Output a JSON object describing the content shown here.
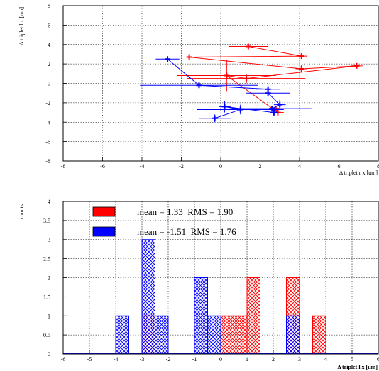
{
  "colors": {
    "red": "#ff0000",
    "blue": "#0000ff",
    "grid": "#000000",
    "frame": "#000000"
  },
  "chart_data": [
    {
      "type": "scatter",
      "title": "",
      "xlabel": "Δ triplet r x [um]",
      "ylabel": "Δ triplet l x [um]",
      "xlim": [
        -8,
        8
      ],
      "ylim": [
        -8,
        8
      ],
      "x_ticks": [
        "-8",
        "-6",
        "-4",
        "-2",
        "0",
        "2",
        "4",
        "6",
        "8"
      ],
      "y_ticks": [
        "-8",
        "-6",
        "-4",
        "-2",
        "0",
        "2",
        "4",
        "6",
        "8"
      ],
      "grid": true,
      "legend": "none",
      "series": [
        {
          "color": "#ff0000",
          "style": "points-with-errorbars-connected",
          "points": [
            {
              "x": 1.4,
              "y": 3.8,
              "xerr": 1.0,
              "yerr": 0.2
            },
            {
              "x": 4.1,
              "y": 2.8,
              "xerr": 0.3,
              "yerr": 0.2
            },
            {
              "x": -1.6,
              "y": 2.7,
              "xerr": 0.3,
              "yerr": 0.2
            },
            {
              "x": 4.1,
              "y": 1.5,
              "xerr": 0.3,
              "yerr": 0.4
            },
            {
              "x": 6.9,
              "y": 1.8,
              "xerr": 0.3,
              "yerr": 0.2
            },
            {
              "x": 1.3,
              "y": 0.5,
              "xerr": 3.0,
              "yerr": 0.5
            },
            {
              "x": 0.3,
              "y": 0.8,
              "xerr": 2.5,
              "yerr": 1.6
            },
            {
              "x": 2.9,
              "y": -3.0,
              "xerr": 0.3,
              "yerr": 0.3
            },
            {
              "x": 2.8,
              "y": -2.6,
              "xerr": 0.2,
              "yerr": 0.3
            }
          ]
        },
        {
          "color": "#0000ff",
          "style": "points-with-errorbars-connected",
          "points": [
            {
              "x": -2.7,
              "y": 2.5,
              "xerr": 0.6,
              "yerr": 0.2
            },
            {
              "x": -1.1,
              "y": -0.2,
              "xerr": 3.0,
              "yerr": 0.2
            },
            {
              "x": 2.4,
              "y": -0.6,
              "xerr": 0.6,
              "yerr": 0.4
            },
            {
              "x": 2.4,
              "y": -1.0,
              "xerr": 1.1,
              "yerr": 0.4
            },
            {
              "x": 3.0,
              "y": -2.2,
              "xerr": 0.3,
              "yerr": 0.5
            },
            {
              "x": 2.6,
              "y": -2.6,
              "xerr": 2.0,
              "yerr": 0.3
            },
            {
              "x": 2.7,
              "y": -3.0,
              "xerr": 0.2,
              "yerr": 0.4
            },
            {
              "x": 0.2,
              "y": -2.4,
              "xerr": 0.3,
              "yerr": 0.6
            },
            {
              "x": 1.0,
              "y": -2.7,
              "xerr": 2.2,
              "yerr": 0.5
            },
            {
              "x": -0.3,
              "y": -3.6,
              "xerr": 0.8,
              "yerr": 0.4
            }
          ]
        }
      ]
    },
    {
      "type": "bar",
      "title": "",
      "xlabel": "Δ triplet l x [um]",
      "ylabel": "counts",
      "xlim": [
        -6,
        6
      ],
      "ylim": [
        0,
        4
      ],
      "x_ticks": [
        "-6",
        "-5",
        "-4",
        "-3",
        "-2",
        "-1",
        "0",
        "1",
        "2",
        "3",
        "4",
        "5",
        "6"
      ],
      "y_ticks": [
        "0",
        "0.5",
        "1",
        "1.5",
        "2",
        "2.5",
        "3",
        "3.5",
        "4"
      ],
      "bin_width": 0.5,
      "grid": true,
      "legend": "top-left",
      "series": [
        {
          "name": "mean = 1.33  RMS = 1.90",
          "color": "#ff0000",
          "bins": [
            {
              "x0": -3.0,
              "count": 1
            },
            {
              "x0": 0.0,
              "count": 1
            },
            {
              "x0": 0.5,
              "count": 1
            },
            {
              "x0": 1.0,
              "count": 2
            },
            {
              "x0": 2.5,
              "count": 2
            },
            {
              "x0": 3.5,
              "count": 1
            }
          ]
        },
        {
          "name": "mean = -1.51  RMS = 1.76",
          "color": "#0000ff",
          "bins": [
            {
              "x0": -4.0,
              "count": 1
            },
            {
              "x0": -3.0,
              "count": 3
            },
            {
              "x0": -2.5,
              "count": 1
            },
            {
              "x0": -1.0,
              "count": 2
            },
            {
              "x0": -0.5,
              "count": 1
            },
            {
              "x0": 2.5,
              "count": 1
            }
          ]
        }
      ]
    }
  ]
}
